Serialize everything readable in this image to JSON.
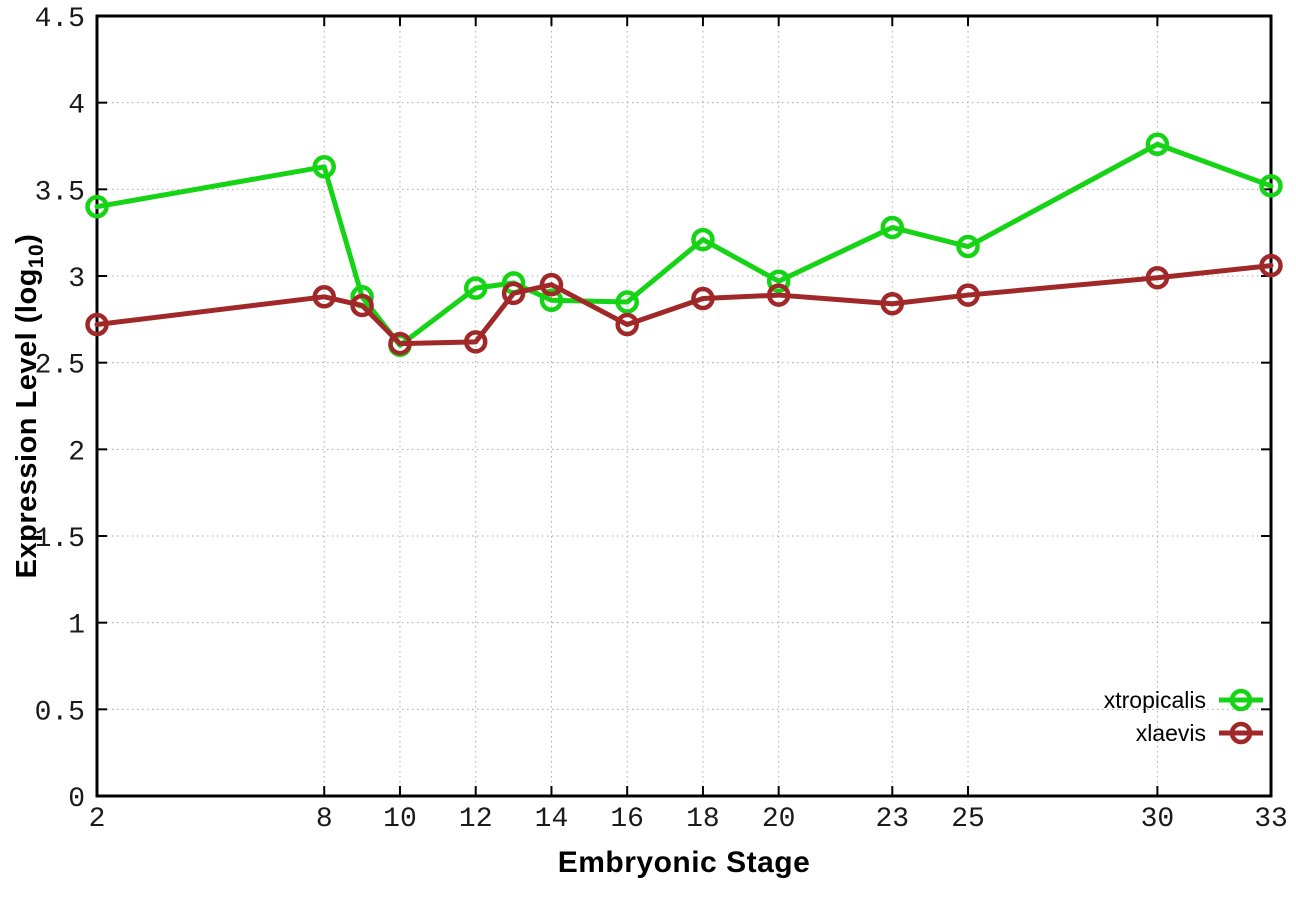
{
  "chart_data": {
    "type": "line",
    "title": "",
    "xlabel": "Embryonic Stage",
    "ylabel": "Expression Level (log10)",
    "ylabel_parts": {
      "main": "Expression Level (log",
      "sub": "10",
      "suffix": ")"
    },
    "xlim": [
      2,
      33
    ],
    "ylim": [
      0,
      4.5
    ],
    "x_ticks": [
      2,
      8,
      10,
      12,
      14,
      16,
      18,
      20,
      23,
      25,
      30,
      33
    ],
    "y_ticks": [
      0,
      0.5,
      1,
      1.5,
      2,
      2.5,
      3,
      3.5,
      4,
      4.5
    ],
    "grid": true,
    "legend_position": "inside bottom-right",
    "x": [
      2,
      8,
      9,
      10,
      12,
      13,
      14,
      16,
      18,
      20,
      23,
      25,
      30,
      33
    ],
    "series": [
      {
        "name": "xtropicalis",
        "color": "#15d415",
        "marker": "open-circle",
        "values": [
          3.4,
          3.63,
          2.88,
          2.6,
          2.93,
          2.96,
          2.86,
          2.85,
          3.21,
          2.97,
          3.28,
          3.17,
          3.76,
          3.52
        ]
      },
      {
        "name": "xlaevis",
        "color": "#a12828",
        "marker": "open-circle",
        "values": [
          2.72,
          2.88,
          2.83,
          2.61,
          2.62,
          2.9,
          2.95,
          2.72,
          2.87,
          2.89,
          2.84,
          2.89,
          2.99,
          3.06
        ]
      }
    ]
  },
  "colors": {
    "background": "#ffffff",
    "axis": "#000000",
    "grid": "#aaaaaa",
    "tick_text": "#1a1a1a"
  }
}
